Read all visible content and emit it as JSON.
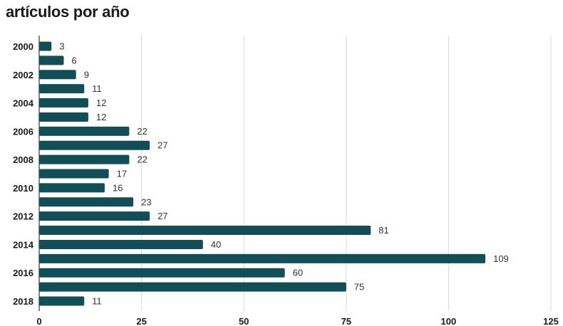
{
  "chart_data": {
    "type": "bar",
    "orientation": "horizontal",
    "title": "artículos por año",
    "xlabel": "",
    "ylabel": "",
    "categories": [
      "2000",
      "2001",
      "2002",
      "2003",
      "2004",
      "2005",
      "2006",
      "2007",
      "2008",
      "2009",
      "2010",
      "2011",
      "2012",
      "2013",
      "2014",
      "2015",
      "2016",
      "2017",
      "2018"
    ],
    "category_labels_shown": [
      "2000",
      "",
      "2002",
      "",
      "2004",
      "",
      "2006",
      "",
      "2008",
      "",
      "2010",
      "",
      "2012",
      "",
      "2014",
      "",
      "2016",
      "",
      "2018"
    ],
    "values": [
      3,
      6,
      9,
      11,
      12,
      12,
      22,
      27,
      22,
      17,
      16,
      23,
      27,
      81,
      40,
      109,
      60,
      75,
      11
    ],
    "xlim": [
      0,
      125
    ],
    "xticks": [
      0,
      25,
      50,
      75,
      100,
      125
    ],
    "grid": true,
    "bar_color": "#124e57",
    "grid_color": "#d9d9d9"
  }
}
